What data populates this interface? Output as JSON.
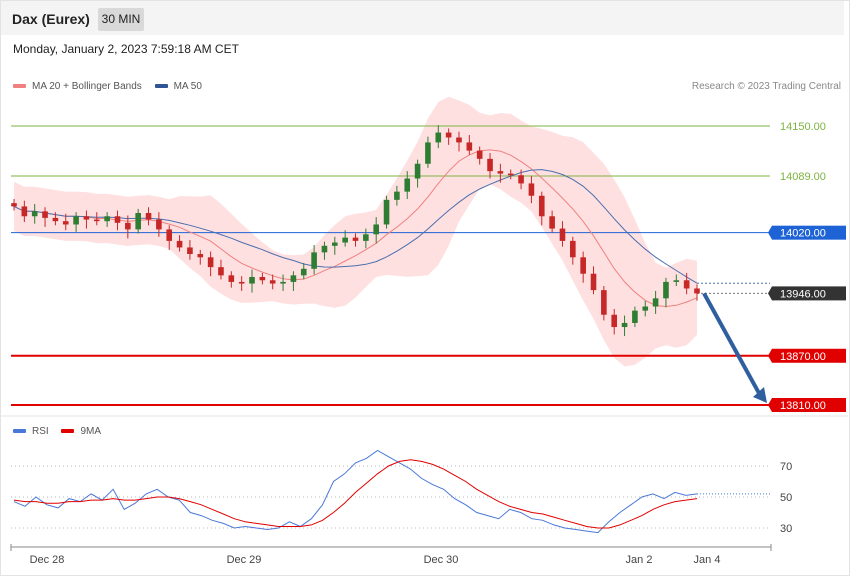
{
  "header": {
    "instrument": "Dax (Eurex)",
    "timeframe": "30 MIN",
    "datetime": "Monday, January 2, 2023 7:59:18 AM CET",
    "copyright": "Research © 2023 Trading Central"
  },
  "legend_price": [
    {
      "label": "MA 20 + Bollinger Bands",
      "color": "#f08080"
    },
    {
      "label": "MA 50",
      "color": "#2f5597"
    }
  ],
  "legend_rsi": [
    {
      "label": "RSI",
      "color": "#4a78d8"
    },
    {
      "label": "9MA",
      "color": "#e00000"
    }
  ],
  "colors": {
    "up_candle": "#2e7d32",
    "down_candle": "#c62828",
    "bollinger_fill": "#ffe0e0",
    "ma20": "#f08080",
    "ma50": "#4a6fb0",
    "resistance": "#7cb342",
    "pivot": "#1e63d6",
    "support": "#e00000",
    "current_price": "#333333",
    "arrow": "#2f5f9f"
  },
  "chart_data": [
    {
      "type": "candlestick",
      "title": "Dax (Eurex) 30 MIN",
      "ylim": [
        13810,
        14170
      ],
      "x_tick_labels": [
        "Dec 28",
        "Dec 29",
        "Dec 30",
        "Jan 2",
        "Jan 4"
      ],
      "levels": [
        {
          "value": 14150.0,
          "label": "14150.00",
          "kind": "resistance"
        },
        {
          "value": 14089.0,
          "label": "14089.00",
          "kind": "resistance"
        },
        {
          "value": 14020.0,
          "label": "14020.00",
          "kind": "pivot"
        },
        {
          "value": 13946.0,
          "label": "13946.00",
          "kind": "current"
        },
        {
          "value": 13870.0,
          "label": "13870.00",
          "kind": "support"
        },
        {
          "value": 13810.0,
          "label": "13810.00",
          "kind": "support"
        }
      ],
      "forecast_arrow": {
        "from": 13946,
        "to": 13810,
        "direction": "down"
      },
      "close_series": [
        14052,
        14040,
        14046,
        14038,
        14034,
        14030,
        14040,
        14036,
        14034,
        14040,
        14032,
        14024,
        14044,
        14036,
        14024,
        14010,
        14002,
        13994,
        13990,
        13978,
        13968,
        13960,
        13958,
        13966,
        13962,
        13958,
        13960,
        13968,
        13976,
        13996,
        14004,
        14008,
        14014,
        14010,
        14018,
        14030,
        14060,
        14070,
        14086,
        14104,
        14130,
        14142,
        14136,
        14130,
        14120,
        14110,
        14095,
        14092,
        14090,
        14080,
        14065,
        14040,
        14025,
        14010,
        13990,
        13970,
        13950,
        13920,
        13905,
        13910,
        13925,
        13930,
        13940,
        13960,
        13962,
        13952,
        13946
      ]
    },
    {
      "type": "line",
      "title": "RSI",
      "ylim": [
        20,
        80
      ],
      "y_ticks": [
        30,
        50,
        70
      ],
      "series": [
        {
          "name": "RSI",
          "values": [
            47,
            44,
            50,
            45,
            43,
            49,
            47,
            52,
            48,
            55,
            42,
            46,
            52,
            55,
            50,
            48,
            40,
            38,
            35,
            33,
            30,
            31,
            30,
            29,
            30,
            34,
            31,
            36,
            45,
            60,
            65,
            72,
            75,
            80,
            76,
            72,
            68,
            62,
            58,
            55,
            49,
            45,
            40,
            38,
            36,
            42,
            40,
            36,
            35,
            32,
            30,
            29,
            28,
            27,
            34,
            40,
            45,
            50,
            52,
            49,
            53,
            51,
            52
          ]
        },
        {
          "name": "9MA",
          "values": [
            48,
            47,
            47,
            46,
            46,
            47,
            47,
            48,
            48,
            49,
            48,
            48,
            49,
            50,
            50,
            49,
            47,
            45,
            42,
            39,
            36,
            34,
            33,
            32,
            31,
            31,
            31,
            32,
            35,
            40,
            46,
            53,
            59,
            65,
            70,
            73,
            74,
            73,
            71,
            68,
            64,
            60,
            55,
            51,
            47,
            44,
            42,
            40,
            39,
            37,
            35,
            33,
            31,
            30,
            30,
            32,
            35,
            38,
            42,
            45,
            47,
            48,
            49
          ]
        }
      ]
    }
  ]
}
